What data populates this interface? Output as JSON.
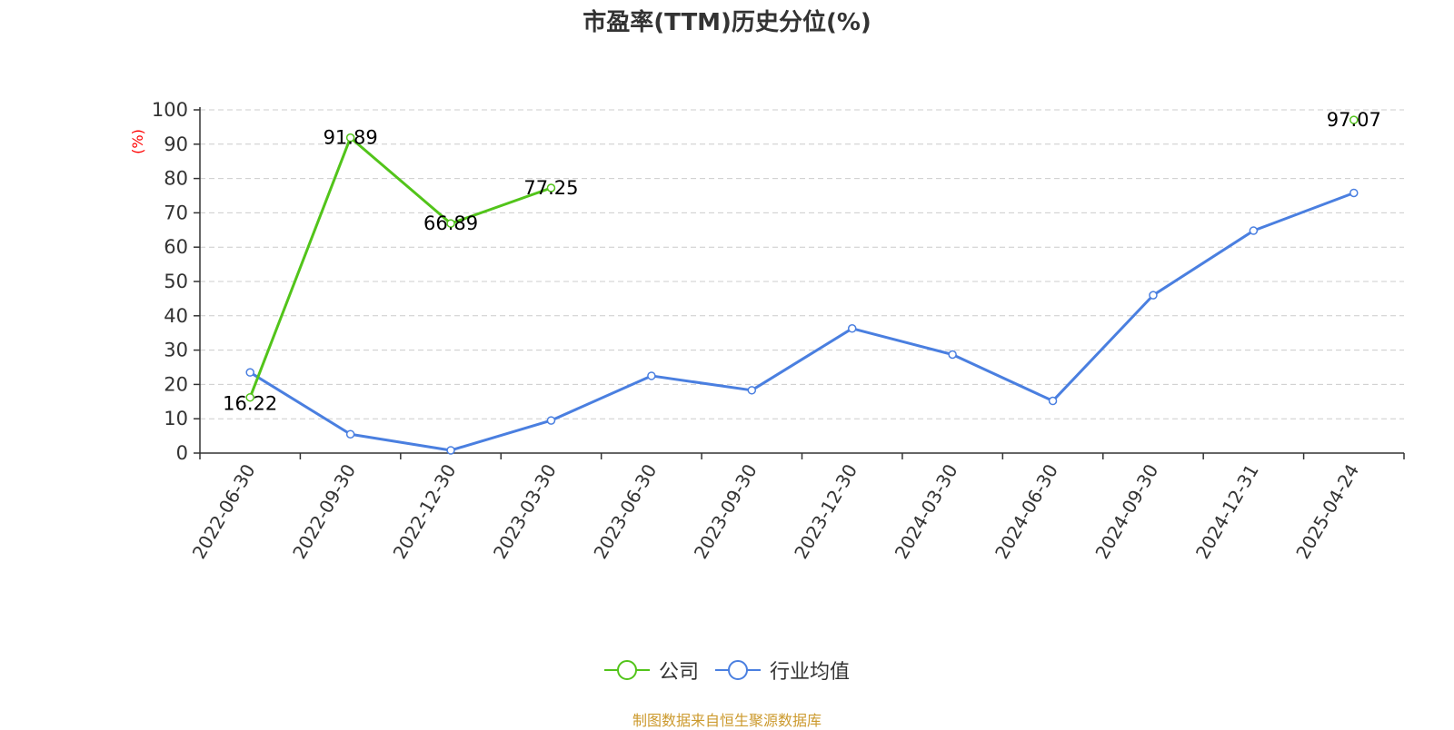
{
  "title": "市盈率(TTM)历史分位(%)",
  "source_note": "制图数据来自恒生聚源数据库",
  "colors": {
    "company": "#52c41a",
    "industry": "#4a7fe0",
    "ylabel": "#ff0000",
    "source": "#cc9a2e",
    "grid": "#cccccc"
  },
  "legend_items": [
    "公司",
    "行业均值"
  ],
  "chart_data": {
    "type": "line",
    "title": "市盈率(TTM)历史分位(%)",
    "ylabel": "(%)",
    "xlabel": "",
    "ylim": [
      0,
      100
    ],
    "yticks": [
      0,
      10,
      20,
      30,
      40,
      50,
      60,
      70,
      80,
      90,
      100
    ],
    "grid": "horizontal-dashed",
    "legend_position": "bottom",
    "categories": [
      "2022-06-30",
      "2022-09-30",
      "2022-12-30",
      "2023-03-30",
      "2023-06-30",
      "2023-09-30",
      "2023-12-30",
      "2024-03-30",
      "2024-06-30",
      "2024-09-30",
      "2024-12-31",
      "2025-04-24"
    ],
    "series": [
      {
        "name": "公司",
        "values": [
          16.22,
          91.89,
          66.89,
          77.25,
          null,
          null,
          null,
          null,
          null,
          null,
          null,
          97.07
        ],
        "labels": [
          "16.22",
          "91.89",
          "66.89",
          "77.25",
          "",
          "",
          "",
          "",
          "",
          "",
          "",
          "97.07"
        ]
      },
      {
        "name": "行业均值",
        "values": [
          23.5,
          5.5,
          0.8,
          9.5,
          22.5,
          18.3,
          36.3,
          28.7,
          15.2,
          46.0,
          64.8,
          75.8
        ]
      }
    ]
  }
}
